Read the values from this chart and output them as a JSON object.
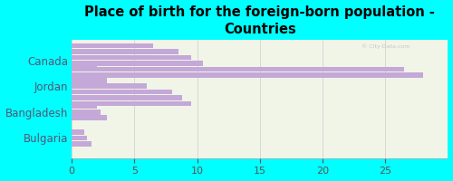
{
  "title": "Place of birth for the foreign-born population -\nCountries",
  "categories": [
    "Canada",
    "Jordan",
    "Bangladesh",
    "Bulgaria"
  ],
  "bar_groups": [
    [
      28.0,
      26.5,
      10.5,
      9.5,
      8.5,
      6.5
    ],
    [
      9.5,
      8.8,
      8.0,
      6.0,
      2.8,
      2.2,
      2.0
    ],
    [
      2.8,
      2.3,
      2.0
    ],
    [
      1.6,
      1.2,
      1.0
    ]
  ],
  "bar_color": "#c4a8d8",
  "background_color": "#00ffff",
  "plot_bg_color": "#f0f5e8",
  "xlim": [
    0,
    30
  ],
  "xticks": [
    0,
    5,
    10,
    15,
    20,
    25
  ],
  "title_fontsize": 10.5,
  "title_fontweight": "bold",
  "ylabel_color": "#555577",
  "xlabel_color": "#555555"
}
